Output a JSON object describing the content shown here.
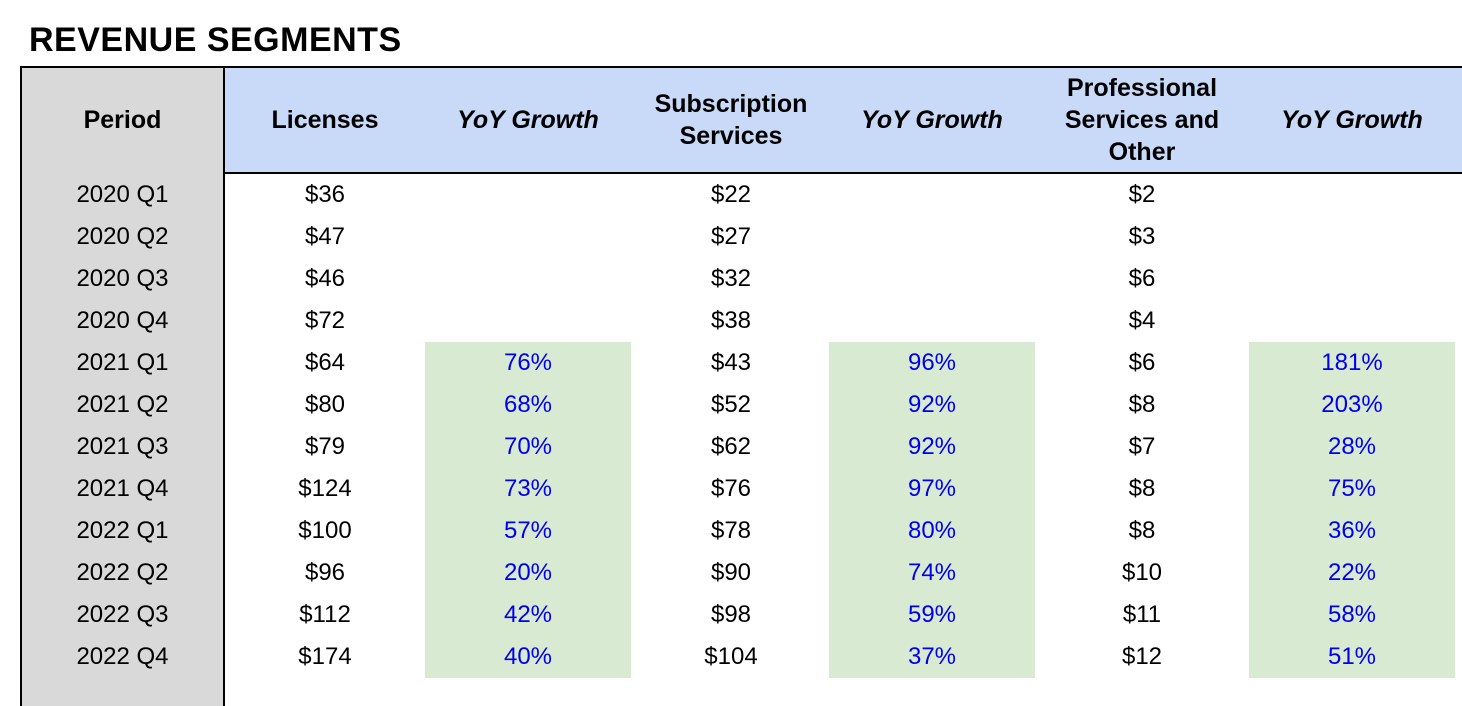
{
  "title": "REVENUE SEGMENTS",
  "headers": {
    "period": "Period",
    "licenses": "Licenses",
    "licenses_yoy": "YoY Growth",
    "subscription": "Subscription Services",
    "subscription_yoy": "YoY Growth",
    "professional": "Professional Services and Other",
    "professional_yoy": "YoY Growth"
  },
  "colors": {
    "header_band": "#c9daf8",
    "period_column": "#d9d9d9",
    "growth_band": "#d9ead3",
    "growth_text": "#0000ee"
  },
  "rows": [
    {
      "period": "2020 Q1",
      "licenses": "$36",
      "licenses_yoy": "",
      "subscription": "$22",
      "subscription_yoy": "",
      "professional": "$2",
      "professional_yoy": ""
    },
    {
      "period": "2020 Q2",
      "licenses": "$47",
      "licenses_yoy": "",
      "subscription": "$27",
      "subscription_yoy": "",
      "professional": "$3",
      "professional_yoy": ""
    },
    {
      "period": "2020 Q3",
      "licenses": "$46",
      "licenses_yoy": "",
      "subscription": "$32",
      "subscription_yoy": "",
      "professional": "$6",
      "professional_yoy": ""
    },
    {
      "period": "2020 Q4",
      "licenses": "$72",
      "licenses_yoy": "",
      "subscription": "$38",
      "subscription_yoy": "",
      "professional": "$4",
      "professional_yoy": ""
    },
    {
      "period": "2021 Q1",
      "licenses": "$64",
      "licenses_yoy": "76%",
      "subscription": "$43",
      "subscription_yoy": "96%",
      "professional": "$6",
      "professional_yoy": "181%"
    },
    {
      "period": "2021 Q2",
      "licenses": "$80",
      "licenses_yoy": "68%",
      "subscription": "$52",
      "subscription_yoy": "92%",
      "professional": "$8",
      "professional_yoy": "203%"
    },
    {
      "period": "2021 Q3",
      "licenses": "$79",
      "licenses_yoy": "70%",
      "subscription": "$62",
      "subscription_yoy": "92%",
      "professional": "$7",
      "professional_yoy": "28%"
    },
    {
      "period": "2021 Q4",
      "licenses": "$124",
      "licenses_yoy": "73%",
      "subscription": "$76",
      "subscription_yoy": "97%",
      "professional": "$8",
      "professional_yoy": "75%"
    },
    {
      "period": "2022 Q1",
      "licenses": "$100",
      "licenses_yoy": "57%",
      "subscription": "$78",
      "subscription_yoy": "80%",
      "professional": "$8",
      "professional_yoy": "36%"
    },
    {
      "period": "2022 Q2",
      "licenses": "$96",
      "licenses_yoy": "20%",
      "subscription": "$90",
      "subscription_yoy": "74%",
      "professional": "$10",
      "professional_yoy": "22%"
    },
    {
      "period": "2022 Q3",
      "licenses": "$112",
      "licenses_yoy": "42%",
      "subscription": "$98",
      "subscription_yoy": "59%",
      "professional": "$11",
      "professional_yoy": "58%"
    },
    {
      "period": "2022 Q4",
      "licenses": "$174",
      "licenses_yoy": "40%",
      "subscription": "$104",
      "subscription_yoy": "37%",
      "professional": "$12",
      "professional_yoy": "51%"
    }
  ]
}
